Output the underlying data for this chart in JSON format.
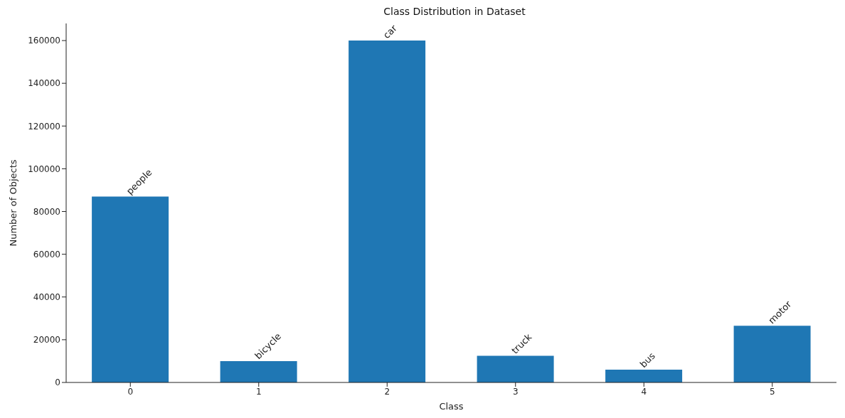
{
  "chart_data": {
    "type": "bar",
    "title": "Class Distribution in Dataset",
    "xlabel": "Class",
    "ylabel": "Number of Objects",
    "categories": [
      "0",
      "1",
      "2",
      "3",
      "4",
      "5"
    ],
    "values": [
      87000,
      10000,
      160000,
      12500,
      6000,
      26500
    ],
    "color": "#1f77b4",
    "ylim": [
      0,
      168000
    ],
    "yticks": [
      0,
      20000,
      40000,
      60000,
      80000,
      100000,
      120000,
      140000,
      160000
    ],
    "grid": false,
    "annotations": [
      {
        "text": "people",
        "x": "0",
        "y": 87000
      },
      {
        "text": "bicycle",
        "x": "1",
        "y": 10000
      },
      {
        "text": "car",
        "x": "2",
        "y": 160000
      },
      {
        "text": "truck",
        "x": "3",
        "y": 12500
      },
      {
        "text": "bus",
        "x": "4",
        "y": 6000
      },
      {
        "text": "motor",
        "x": "5",
        "y": 26500
      }
    ]
  }
}
